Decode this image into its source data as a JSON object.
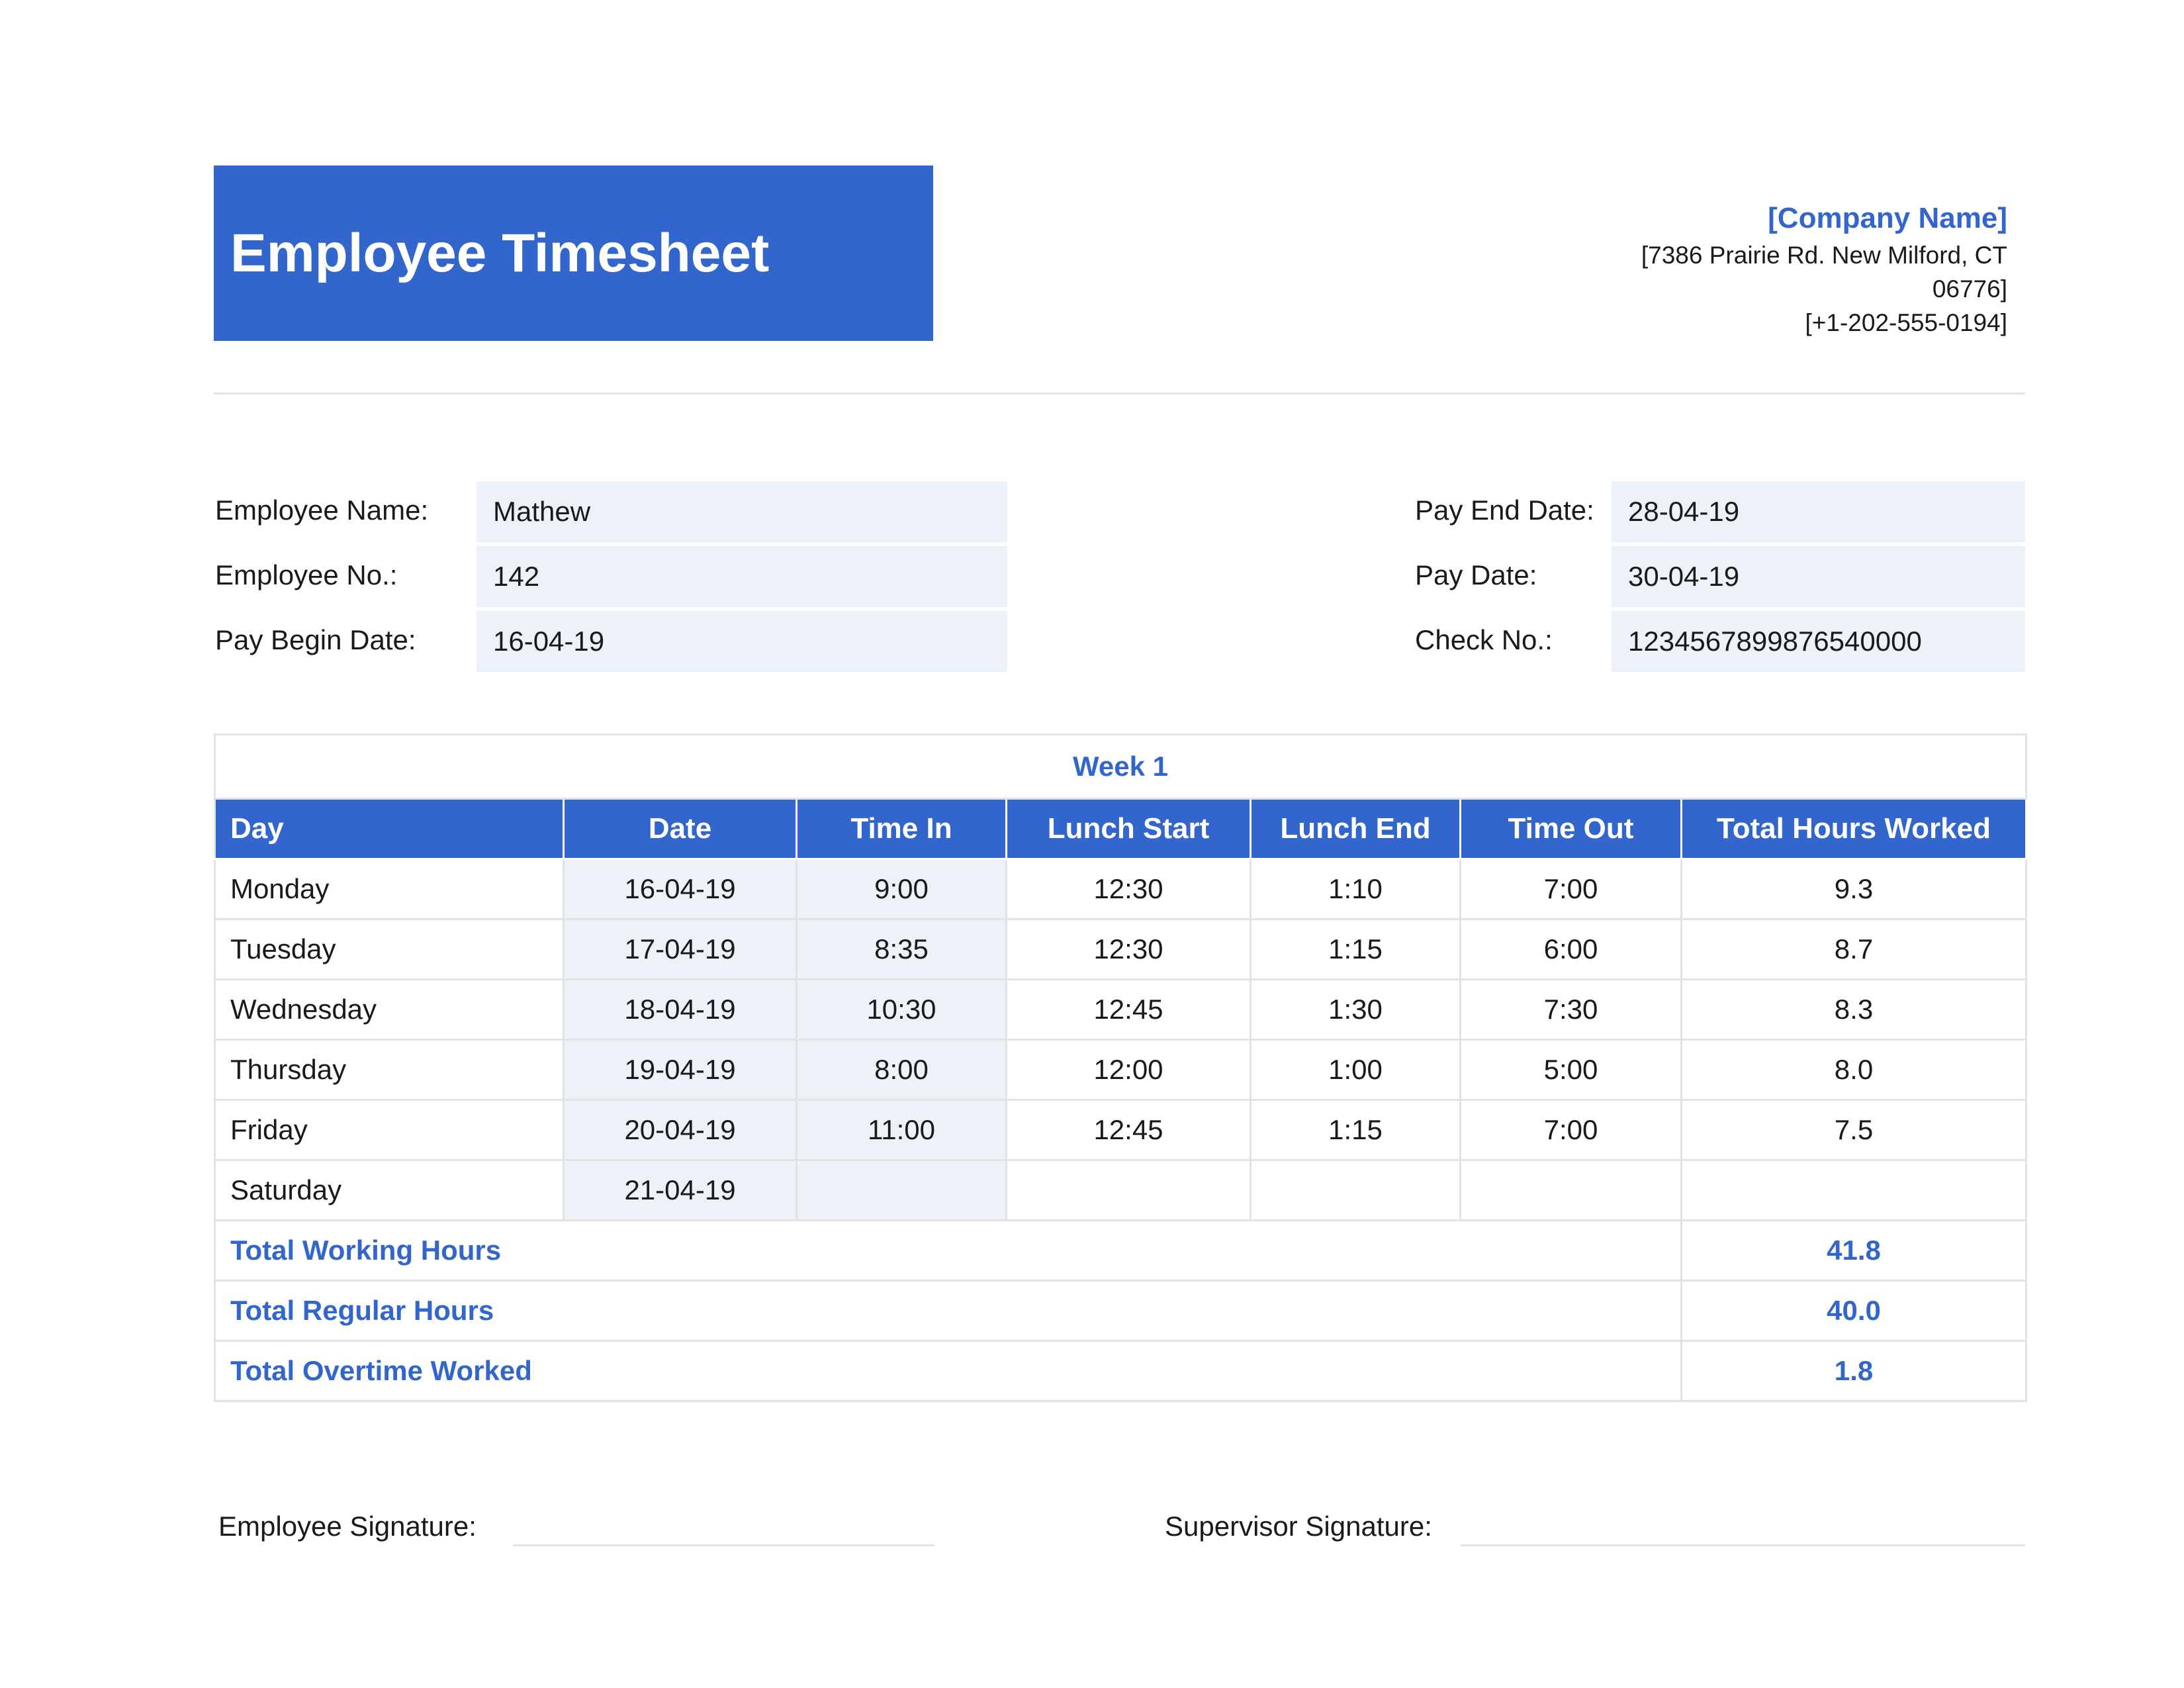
{
  "header": {
    "title": "Employee Timesheet",
    "company_name": "[Company Name]",
    "address_line1": "[7386 Prairie Rd. New Milford, CT",
    "address_line2": "06776]",
    "phone": "[+1-202-555-0194]"
  },
  "employee_info": {
    "left": [
      {
        "label": "Employee Name:",
        "value": "Mathew"
      },
      {
        "label": "Employee No.:",
        "value": "142"
      },
      {
        "label": "Pay Begin Date:",
        "value": "16-04-19"
      }
    ],
    "right": [
      {
        "label": "Pay End Date:",
        "value": "28-04-19"
      },
      {
        "label": "Pay Date:",
        "value": "30-04-19"
      },
      {
        "label": "Check No.:",
        "value": "1234567899876540000"
      }
    ]
  },
  "week": {
    "title": "Week 1",
    "columns": [
      "Day",
      "Date",
      "Time In",
      "Lunch Start",
      "Lunch End",
      "Time Out",
      "Total Hours Worked"
    ],
    "rows": [
      [
        "Monday",
        "16-04-19",
        "9:00",
        "12:30",
        "1:10",
        "7:00",
        "9.3"
      ],
      [
        "Tuesday",
        "17-04-19",
        "8:35",
        "12:30",
        "1:15",
        "6:00",
        "8.7"
      ],
      [
        "Wednesday",
        "18-04-19",
        "10:30",
        "12:45",
        "1:30",
        "7:30",
        "8.3"
      ],
      [
        "Thursday",
        "19-04-19",
        "8:00",
        "12:00",
        "1:00",
        "5:00",
        "8.0"
      ],
      [
        "Friday",
        "20-04-19",
        "11:00",
        "12:45",
        "1:15",
        "7:00",
        "7.5"
      ],
      [
        "Saturday",
        "21-04-19",
        "",
        "",
        "",
        "",
        ""
      ]
    ],
    "totals": [
      {
        "label": "Total Working Hours",
        "value": "41.8"
      },
      {
        "label": "Total Regular Hours",
        "value": "40.0"
      },
      {
        "label": "Total Overtime Worked",
        "value": "1.8"
      }
    ]
  },
  "signatures": {
    "employee_label": "Employee Signature:",
    "supervisor_label": "Supervisor Signature:"
  },
  "colors": {
    "accent": "#3366cc",
    "field_background": "#edf1f8",
    "border": "#e3e3e3"
  }
}
